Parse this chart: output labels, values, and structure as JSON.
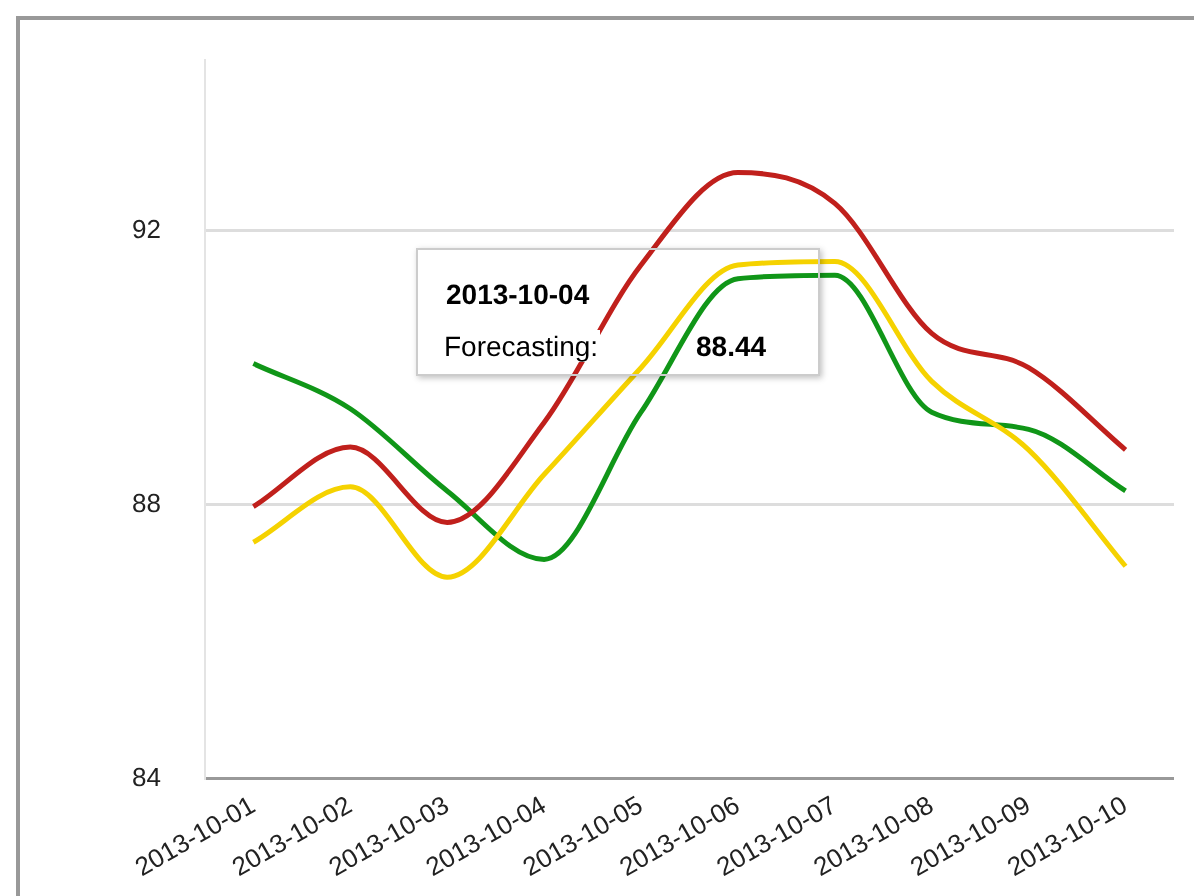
{
  "chart_data": {
    "type": "line",
    "categories": [
      "2013-10-01",
      "2013-10-02",
      "2013-10-03",
      "2013-10-04",
      "2013-10-05",
      "2013-10-06",
      "2013-10-07",
      "2013-10-08",
      "2013-10-09",
      "2013-10-10"
    ],
    "series": [
      {
        "color": "#109618",
        "values": [
          90.06,
          89.4,
          88.2,
          87.2,
          89.35,
          91.3,
          91.35,
          89.35,
          89.1,
          88.2
        ]
      },
      {
        "color": "#c0201c",
        "values": [
          87.97,
          88.84,
          87.74,
          89.2,
          91.5,
          92.85,
          92.4,
          90.5,
          90.0,
          88.8
        ]
      },
      {
        "name": "Forecasting:",
        "color": "#f5d200",
        "values": [
          87.45,
          88.26,
          86.94,
          88.44,
          90.0,
          91.5,
          91.55,
          89.8,
          88.8,
          87.1
        ]
      }
    ],
    "annotations": [
      "2013-10-04",
      "88.44"
    ],
    "ylim": [
      84,
      94.5
    ],
    "yticks": [
      84,
      88,
      92
    ],
    "grid": "y",
    "legend": false,
    "marker": "none",
    "line_style": "solid"
  }
}
